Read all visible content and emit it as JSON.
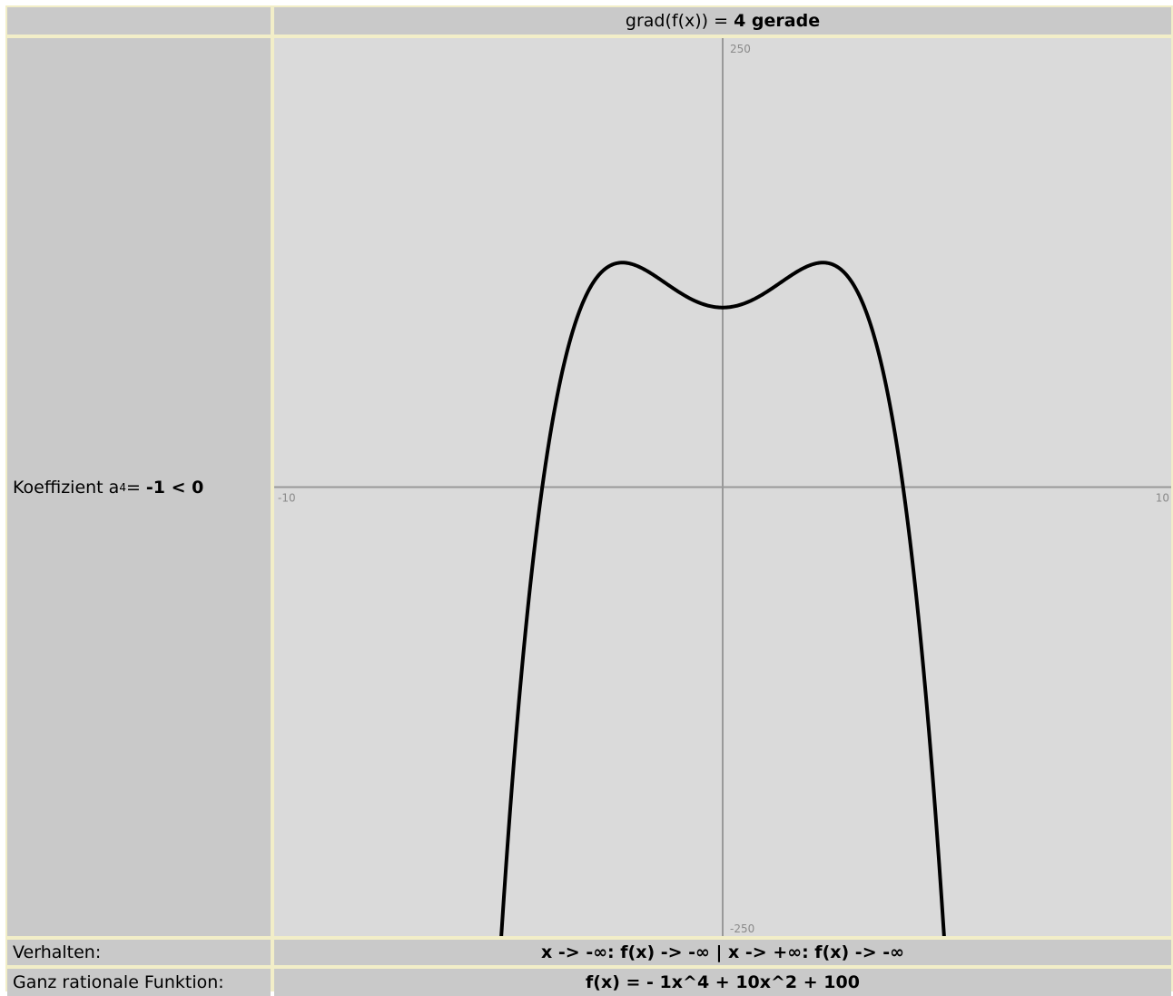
{
  "header": {
    "grad_prefix": "grad(f(x)) = ",
    "grad_value": "4 gerade"
  },
  "sidebar": {
    "coef_prefix": "Koeffizient a",
    "coef_index": "4",
    "coef_eq": " = ",
    "coef_value": "-1 < 0"
  },
  "rows": {
    "verhalten_label": "Verhalten:",
    "verhalten_value": "x -> -∞: f(x) -> -∞ | x -> +∞: f(x) -> -∞",
    "funktion_label": "Ganz rationale Funktion:",
    "funktion_value": "f(x) = - 1x^4 + 10x^2 + 100"
  },
  "chart_data": {
    "type": "line",
    "function": "- 1x^4 + 10x^2 + 100",
    "coefficients": {
      "a4": -1,
      "a2": 10,
      "a0": 100
    },
    "xlim": [
      -10,
      10
    ],
    "ylim": [
      -250,
      250
    ],
    "tick_labels": {
      "x_min": "-10",
      "x_max": "10",
      "y_min": "-250",
      "y_max": "250"
    },
    "grid": false,
    "colors": {
      "curve": "#000000",
      "axes": "#999999",
      "tick_text": "#8a8a8a",
      "plot_bg": "#dadada"
    }
  }
}
